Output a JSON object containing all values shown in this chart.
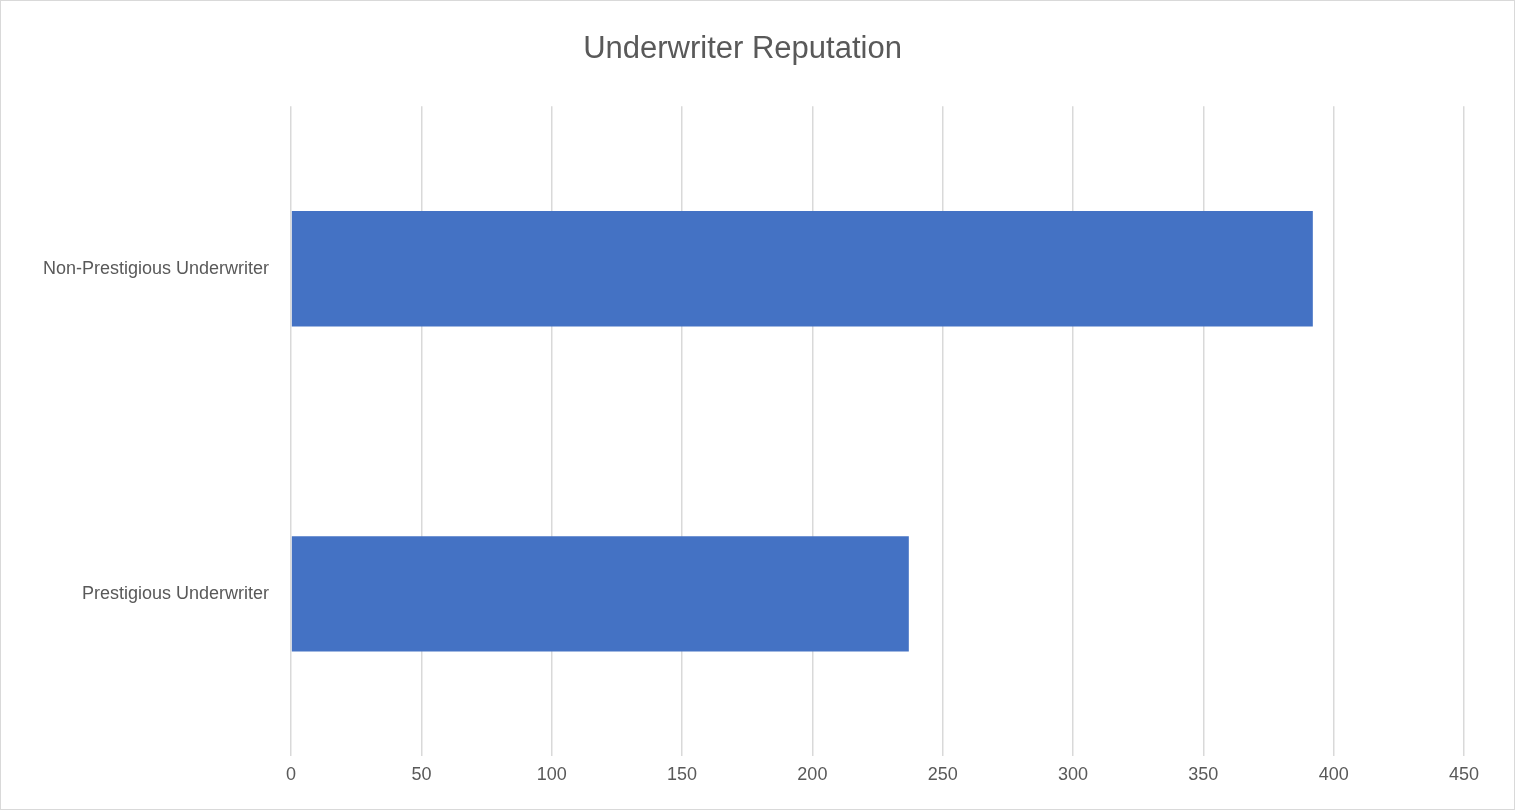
{
  "chart_data": {
    "type": "bar",
    "orientation": "horizontal",
    "title": "Underwriter Reputation",
    "categories": [
      "Non-Prestigious Underwriter",
      "Prestigious Underwriter"
    ],
    "values": [
      392,
      237
    ],
    "color": "#4472c4",
    "xlim": [
      0,
      450
    ],
    "xticks": [
      0,
      50,
      100,
      150,
      200,
      250,
      300,
      350,
      400,
      450
    ],
    "grid": "x"
  }
}
